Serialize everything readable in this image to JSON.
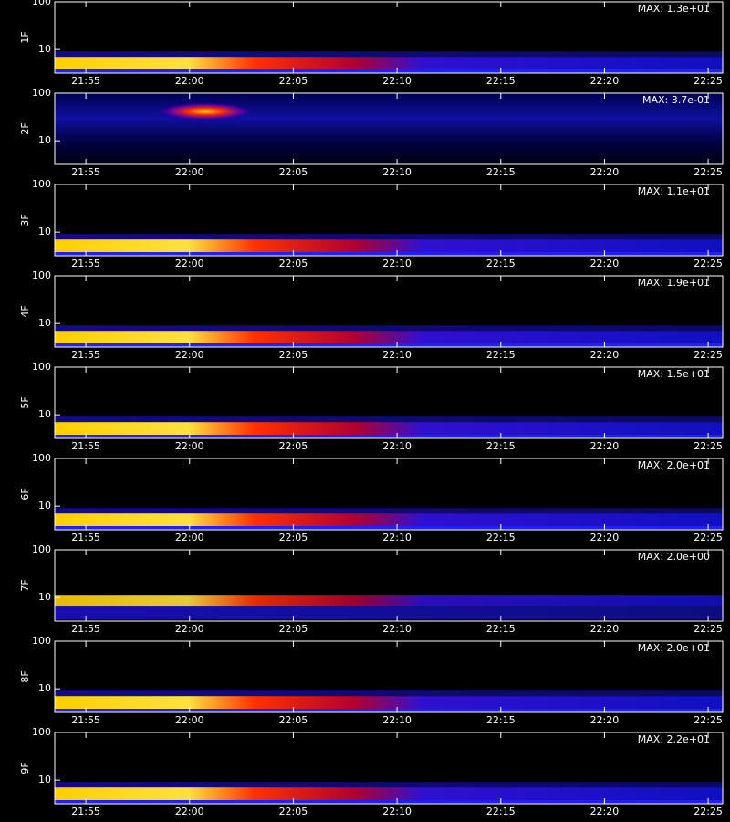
{
  "chart_data": [
    {
      "type": "heatmap",
      "ylabel": "1F",
      "annotation": "MAX: 1.3e+01",
      "log_y": true,
      "ylim": [
        3.2,
        100
      ],
      "yticks": [
        10,
        100
      ],
      "xlim": [
        1313.5,
        1345.7
      ],
      "xticks": [
        {
          "value": 1315,
          "label": "21:55"
        },
        {
          "value": 1320,
          "label": "22:00"
        },
        {
          "value": 1325,
          "label": "22:05"
        },
        {
          "value": 1330,
          "label": "22:10"
        },
        {
          "value": 1335,
          "label": "22:15"
        },
        {
          "value": 1340,
          "label": "22:20"
        },
        {
          "value": 1345,
          "label": "22:25"
        }
      ]
    },
    {
      "type": "heatmap",
      "ylabel": "2F",
      "annotation": "MAX: 3.7e-01",
      "log_y": true,
      "ylim": [
        3.2,
        100
      ],
      "yticks": [
        10,
        100
      ],
      "xlim": [
        1313.5,
        1345.7
      ],
      "xticks": [
        {
          "value": 1315,
          "label": "21:55"
        },
        {
          "value": 1320,
          "label": "22:00"
        },
        {
          "value": 1325,
          "label": "22:05"
        },
        {
          "value": 1330,
          "label": "22:10"
        },
        {
          "value": 1335,
          "label": "22:15"
        },
        {
          "value": 1340,
          "label": "22:20"
        },
        {
          "value": 1345,
          "label": "22:25"
        }
      ]
    },
    {
      "type": "heatmap",
      "ylabel": "3F",
      "annotation": "MAX: 1.1e+01",
      "log_y": true,
      "ylim": [
        3.2,
        100
      ],
      "yticks": [
        10,
        100
      ],
      "xlim": [
        1313.5,
        1345.7
      ],
      "xticks": [
        {
          "value": 1315,
          "label": "21:55"
        },
        {
          "value": 1320,
          "label": "22:00"
        },
        {
          "value": 1325,
          "label": "22:05"
        },
        {
          "value": 1330,
          "label": "22:10"
        },
        {
          "value": 1335,
          "label": "22:15"
        },
        {
          "value": 1340,
          "label": "22:20"
        },
        {
          "value": 1345,
          "label": "22:25"
        }
      ]
    },
    {
      "type": "heatmap",
      "ylabel": "4F",
      "annotation": "MAX: 1.9e+01",
      "log_y": true,
      "ylim": [
        3.2,
        100
      ],
      "yticks": [
        10,
        100
      ],
      "xlim": [
        1313.5,
        1345.7
      ],
      "xticks": [
        {
          "value": 1315,
          "label": "21:55"
        },
        {
          "value": 1320,
          "label": "22:00"
        },
        {
          "value": 1325,
          "label": "22:05"
        },
        {
          "value": 1330,
          "label": "22:10"
        },
        {
          "value": 1335,
          "label": "22:15"
        },
        {
          "value": 1340,
          "label": "22:20"
        },
        {
          "value": 1345,
          "label": "22:25"
        }
      ]
    },
    {
      "type": "heatmap",
      "ylabel": "5F",
      "annotation": "MAX: 1.5e+01",
      "log_y": true,
      "ylim": [
        3.2,
        100
      ],
      "yticks": [
        10,
        100
      ],
      "xlim": [
        1313.5,
        1345.7
      ],
      "xticks": [
        {
          "value": 1315,
          "label": "21:55"
        },
        {
          "value": 1320,
          "label": "22:00"
        },
        {
          "value": 1325,
          "label": "22:05"
        },
        {
          "value": 1330,
          "label": "22:10"
        },
        {
          "value": 1335,
          "label": "22:15"
        },
        {
          "value": 1340,
          "label": "22:20"
        },
        {
          "value": 1345,
          "label": "22:25"
        }
      ]
    },
    {
      "type": "heatmap",
      "ylabel": "6F",
      "annotation": "MAX: 2.0e+01",
      "log_y": true,
      "ylim": [
        3.2,
        100
      ],
      "yticks": [
        10,
        100
      ],
      "xlim": [
        1313.5,
        1345.7
      ],
      "xticks": [
        {
          "value": 1315,
          "label": "21:55"
        },
        {
          "value": 1320,
          "label": "22:00"
        },
        {
          "value": 1325,
          "label": "22:05"
        },
        {
          "value": 1330,
          "label": "22:10"
        },
        {
          "value": 1335,
          "label": "22:15"
        },
        {
          "value": 1340,
          "label": "22:20"
        },
        {
          "value": 1345,
          "label": "22:25"
        }
      ]
    },
    {
      "type": "heatmap",
      "ylabel": "7F",
      "annotation": "MAX: 2.0e+00",
      "log_y": true,
      "ylim": [
        3.2,
        100
      ],
      "yticks": [
        10,
        100
      ],
      "xlim": [
        1313.5,
        1345.7
      ],
      "xticks": [
        {
          "value": 1315,
          "label": "21:55"
        },
        {
          "value": 1320,
          "label": "22:00"
        },
        {
          "value": 1325,
          "label": "22:05"
        },
        {
          "value": 1330,
          "label": "22:10"
        },
        {
          "value": 1335,
          "label": "22:15"
        },
        {
          "value": 1340,
          "label": "22:20"
        },
        {
          "value": 1345,
          "label": "22:25"
        }
      ]
    },
    {
      "type": "heatmap",
      "ylabel": "8F",
      "annotation": "MAX: 2.0e+01",
      "log_y": true,
      "ylim": [
        3.2,
        100
      ],
      "yticks": [
        10,
        100
      ],
      "xlim": [
        1313.5,
        1345.7
      ],
      "xticks": [
        {
          "value": 1315,
          "label": "21:55"
        },
        {
          "value": 1320,
          "label": "22:00"
        },
        {
          "value": 1325,
          "label": "22:05"
        },
        {
          "value": 1330,
          "label": "22:10"
        },
        {
          "value": 1335,
          "label": "22:15"
        },
        {
          "value": 1340,
          "label": "22:20"
        },
        {
          "value": 1345,
          "label": "22:25"
        }
      ]
    },
    {
      "type": "heatmap",
      "ylabel": "9F",
      "annotation": "MAX: 2.2e+01",
      "log_y": true,
      "ylim": [
        3.2,
        100
      ],
      "yticks": [
        10,
        100
      ],
      "xlim": [
        1313.5,
        1345.7
      ],
      "xticks": [
        {
          "value": 1315,
          "label": "21:55"
        },
        {
          "value": 1320,
          "label": "22:00"
        },
        {
          "value": 1325,
          "label": "22:05"
        },
        {
          "value": 1330,
          "label": "22:10"
        },
        {
          "value": 1335,
          "label": "22:15"
        },
        {
          "value": 1340,
          "label": "22:20"
        },
        {
          "value": 1345,
          "label": "22:25"
        }
      ]
    }
  ]
}
